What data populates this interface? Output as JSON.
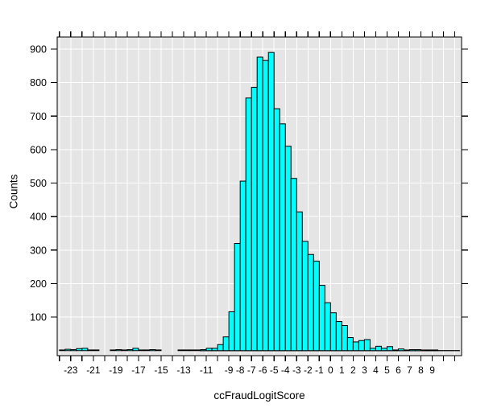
{
  "chart_data": {
    "type": "bar",
    "subtype": "histogram",
    "title": "",
    "xlabel": "ccFraudLogitScore",
    "ylabel": "Counts",
    "legend": "none",
    "bar_color": "#00ffff",
    "bar_border_color": "#000000",
    "panel_color": "#e5e5e5",
    "grid_color": "#ffffff",
    "axis_color": "#000000",
    "bin_width": 0.5,
    "xlim": [
      -24.2,
      11.6
    ],
    "ylim": [
      0,
      940
    ],
    "grid": {
      "h_every": 100,
      "v_every": 1
    },
    "x_minor_tick_step": 1,
    "x_tick_labels": [
      -23,
      -21,
      -19,
      -17,
      -15,
      -13,
      -11,
      -9,
      -8,
      -7,
      -6,
      -5,
      -4,
      -3,
      -2,
      -1,
      0,
      1,
      2,
      3,
      4,
      5,
      6,
      7,
      8,
      9
    ],
    "y_ticks": [
      100,
      200,
      300,
      400,
      500,
      600,
      700,
      800,
      900
    ],
    "zero_line_x": [
      -11.6,
      11.45
    ],
    "bins": [
      [
        -24,
        2
      ],
      [
        -23.5,
        4
      ],
      [
        -23,
        3
      ],
      [
        -22.5,
        6
      ],
      [
        -22,
        7
      ],
      [
        -21.5,
        2
      ],
      [
        -21,
        2
      ],
      [
        -19.5,
        2
      ],
      [
        -19,
        3
      ],
      [
        -18.5,
        2
      ],
      [
        -18,
        3
      ],
      [
        -17.5,
        7
      ],
      [
        -17,
        2
      ],
      [
        -16.5,
        2
      ],
      [
        -16,
        3
      ],
      [
        -15.5,
        2
      ],
      [
        -13.5,
        2
      ],
      [
        -13,
        2
      ],
      [
        -12.5,
        2
      ],
      [
        -12,
        2
      ],
      [
        -11.5,
        3
      ],
      [
        -11,
        7
      ],
      [
        -10.5,
        7
      ],
      [
        -10,
        18
      ],
      [
        -9.5,
        41
      ],
      [
        -9,
        116
      ],
      [
        -8.5,
        320
      ],
      [
        -8,
        506
      ],
      [
        -7.5,
        754
      ],
      [
        -7,
        786
      ],
      [
        -6.5,
        876
      ],
      [
        -6,
        866
      ],
      [
        -5.5,
        890
      ],
      [
        -5,
        722
      ],
      [
        -4.5,
        677
      ],
      [
        -4,
        610
      ],
      [
        -3.5,
        514
      ],
      [
        -3,
        414
      ],
      [
        -2.5,
        326
      ],
      [
        -2,
        287
      ],
      [
        -1.5,
        267
      ],
      [
        -1,
        195
      ],
      [
        -0.5,
        143
      ],
      [
        0,
        113
      ],
      [
        0.5,
        87
      ],
      [
        1,
        75
      ],
      [
        1.5,
        39
      ],
      [
        2,
        26
      ],
      [
        2.5,
        30
      ],
      [
        3,
        33
      ],
      [
        3.5,
        7
      ],
      [
        4,
        13
      ],
      [
        4.5,
        7
      ],
      [
        5,
        12
      ],
      [
        5.5,
        2
      ],
      [
        6,
        5
      ],
      [
        6.5,
        1
      ],
      [
        7,
        3
      ],
      [
        7.5,
        3
      ],
      [
        8,
        1
      ],
      [
        8.5,
        1
      ],
      [
        9,
        1
      ]
    ]
  }
}
